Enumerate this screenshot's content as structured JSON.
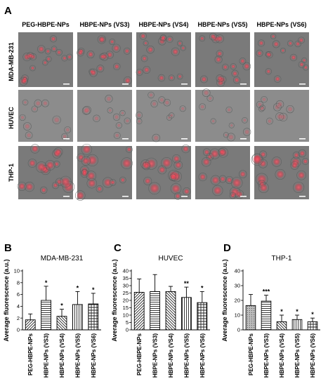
{
  "figure": {
    "panel_a": {
      "letter": "A",
      "columns": [
        "PEG-HBPE-NPs",
        "HBPE-NPs (VS3)",
        "HBPE-NPs (VS4)",
        "HBPE-NPs (VS5)",
        "HBPE-NPs (VS6)"
      ],
      "rows": [
        "MDA-MB-231",
        "HUVEC",
        "THP-1"
      ]
    }
  },
  "chart_data": [
    {
      "letter": "B",
      "type": "bar",
      "title": "MDA-MB-231",
      "xlabel": "",
      "ylabel": "Average fluorescence (a.u.)",
      "ylim": [
        0,
        10
      ],
      "yticks": [
        0,
        2,
        4,
        6,
        8,
        10
      ],
      "categories": [
        "PEG-HBPE-NPs",
        "HBPE-NPs (VS3)",
        "HBPE-NPs (VS4)",
        "HBPE-NPs (VS5)",
        "HBPE-NPs (VS6)"
      ],
      "values": [
        1.7,
        5.0,
        2.3,
        4.3,
        4.4
      ],
      "errors": [
        1.0,
        2.4,
        1.2,
        2.2,
        1.8
      ],
      "significance": [
        "",
        "*",
        "*",
        "*",
        "*"
      ],
      "patterns": [
        "diag-right",
        "hlines",
        "diag-left",
        "vlines",
        "grid"
      ]
    },
    {
      "letter": "C",
      "type": "bar",
      "title": "HUVEC",
      "xlabel": "",
      "ylabel": "Average fluorescence (a.u.)",
      "ylim": [
        0,
        40
      ],
      "yticks": [
        0,
        5,
        10,
        15,
        20,
        25,
        30,
        35,
        40
      ],
      "categories": [
        "PEG-HBPE-NPs",
        "HBPE-NPs (VS3)",
        "HBPE-NPs (VS4)",
        "HBPE-NPs (VS5)",
        "HBPE-NPs (VS6)"
      ],
      "values": [
        25.5,
        26.0,
        26.0,
        22.0,
        18.5
      ],
      "errors": [
        9.0,
        11.5,
        3.5,
        7.0,
        7.5
      ],
      "significance": [
        "",
        "",
        "",
        "**",
        "*"
      ],
      "patterns": [
        "diag-right",
        "hlines",
        "diag-left",
        "vlines",
        "grid"
      ]
    },
    {
      "letter": "D",
      "type": "bar",
      "title": "THP-1",
      "xlabel": "",
      "ylabel": "Average fluorescence (a.u.)",
      "ylim": [
        0,
        40
      ],
      "yticks": [
        0,
        10,
        20,
        30,
        40
      ],
      "categories": [
        "PEG-HBPE-NPs",
        "HBPE-NPs (VS3)",
        "HBPE-NPs (VS4)",
        "HBPE-NPs (VS5)",
        "HBPE-NPs (VS6)"
      ],
      "values": [
        16.5,
        19.5,
        5.5,
        7.0,
        5.5
      ],
      "errors": [
        7.5,
        4.0,
        4.5,
        3.0,
        2.5
      ],
      "significance": [
        "",
        "***",
        "*",
        "*",
        "*"
      ],
      "patterns": [
        "dots",
        "hlines",
        "diag-left",
        "vlines",
        "grid"
      ]
    }
  ]
}
